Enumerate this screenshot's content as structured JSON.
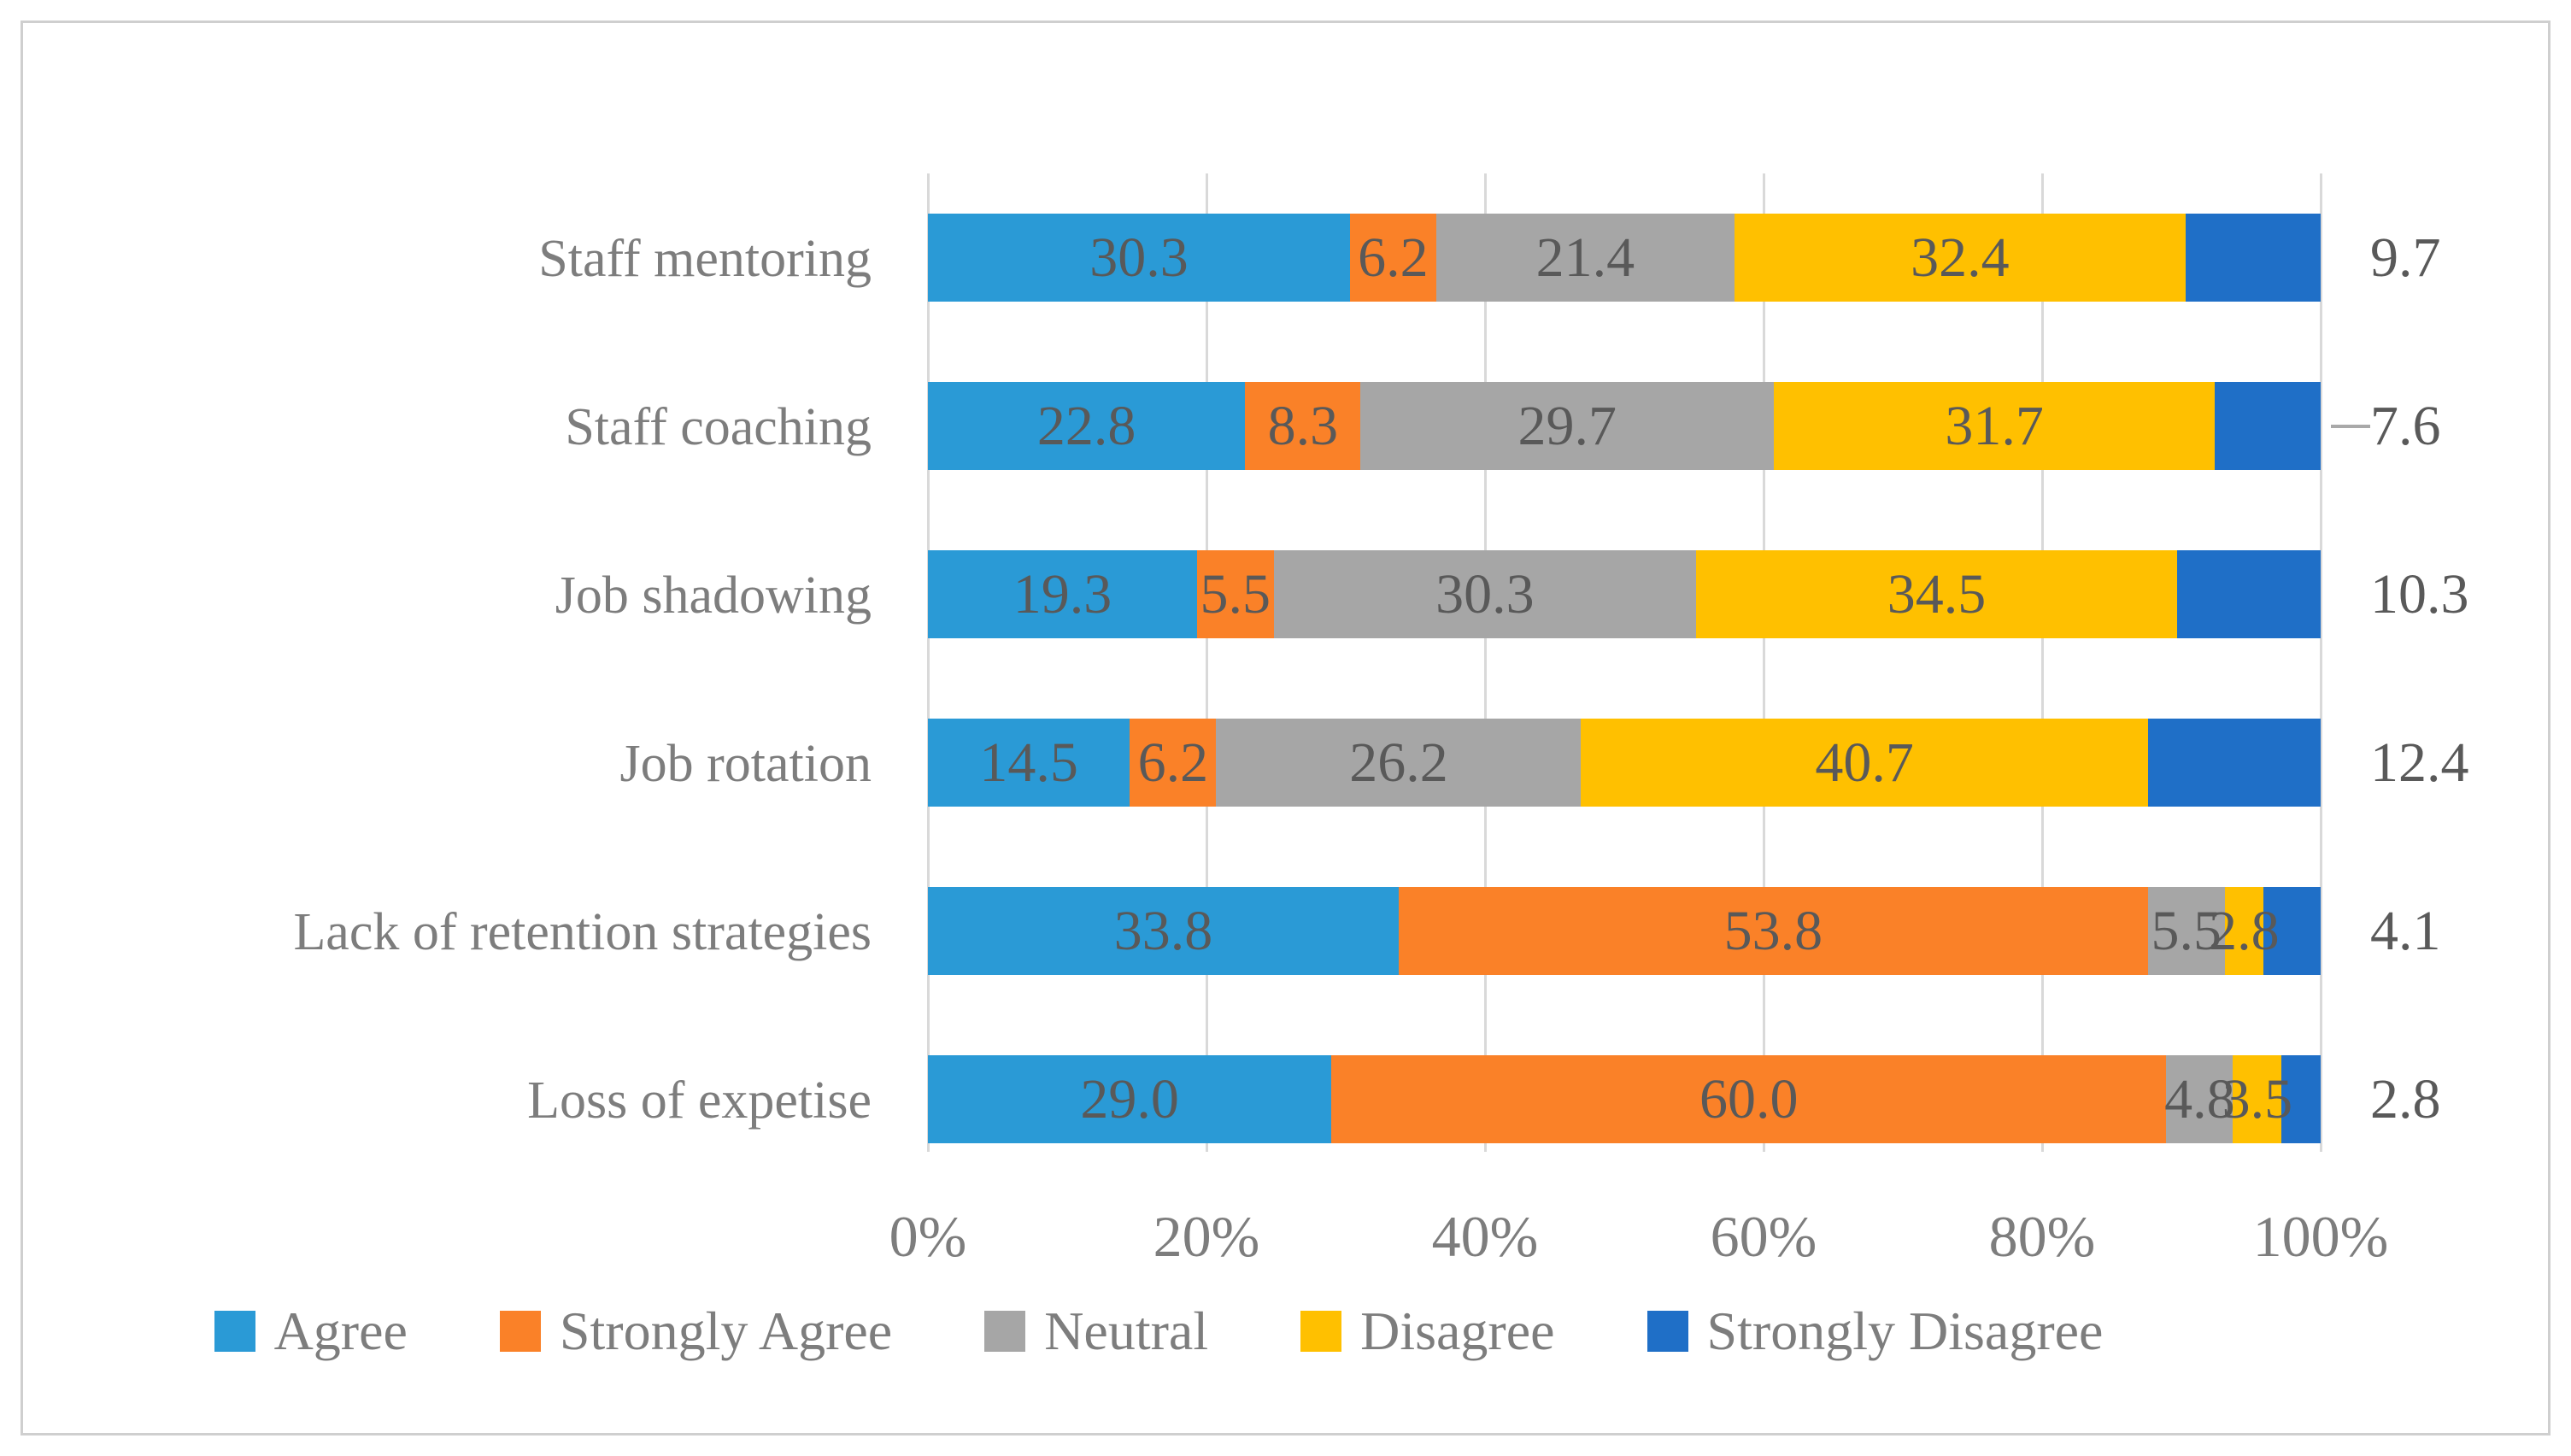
{
  "figure": {
    "background_color": "#FFFFFF",
    "border_color": "#CFCFCF"
  },
  "chart_data": {
    "type": "bar",
    "variant": "horizontal-stacked-100pct",
    "title": "",
    "xlabel": "",
    "ylabel": "",
    "xlim": [
      0,
      100
    ],
    "x_ticks": [
      "0%",
      "20%",
      "40%",
      "60%",
      "80%",
      "100%"
    ],
    "grid": "vertical",
    "gridline_color": "#D9D9D9",
    "legend_position": "bottom",
    "categories": [
      "Staff mentoring",
      "Staff coaching",
      "Job shadowing",
      "Job rotation",
      "Lack of retention strategies",
      "Loss of expetise"
    ],
    "series": [
      {
        "name": "Agree",
        "color": "#2A9AD6",
        "values": [
          30.3,
          22.8,
          19.3,
          14.5,
          33.8,
          29.0
        ],
        "labels": [
          "30.3",
          "22.8",
          "19.3",
          "14.5",
          "33.8",
          "29.0"
        ],
        "label_placement": "inside"
      },
      {
        "name": "Strongly Agree",
        "color": "#FA8128",
        "values": [
          6.2,
          8.3,
          5.5,
          6.2,
          53.8,
          60.0
        ],
        "labels": [
          "6.2",
          "8.3",
          "5.5",
          "6.2",
          "53.8",
          "60.0"
        ],
        "label_placement": "inside"
      },
      {
        "name": "Neutral",
        "color": "#A6A6A6",
        "values": [
          21.4,
          29.7,
          30.3,
          26.2,
          5.5,
          4.8
        ],
        "labels": [
          "21.4",
          "29.7",
          "30.3",
          "26.2",
          "5.5",
          "4.8"
        ],
        "label_placement": "inside"
      },
      {
        "name": "Disagree",
        "color": "#FFC000",
        "values": [
          32.4,
          31.7,
          34.5,
          40.7,
          2.8,
          3.5
        ],
        "labels": [
          "32.4",
          "31.7",
          "34.5",
          "40.7",
          "2.8",
          "3.5"
        ],
        "label_placement": "inside"
      },
      {
        "name": "Strongly Disagree",
        "color": "#1F6FC7",
        "values": [
          9.7,
          7.6,
          10.3,
          12.4,
          4.1,
          2.8
        ],
        "labels": [
          "9.7",
          "7.6",
          "10.3",
          "12.4",
          "4.1",
          "2.8"
        ],
        "label_placement": "outside-right"
      }
    ],
    "leader_line_rows": [
      1
    ],
    "text_colors": {
      "data_labels": "#595959",
      "axis_and_legend": "#7D7D7D"
    }
  }
}
